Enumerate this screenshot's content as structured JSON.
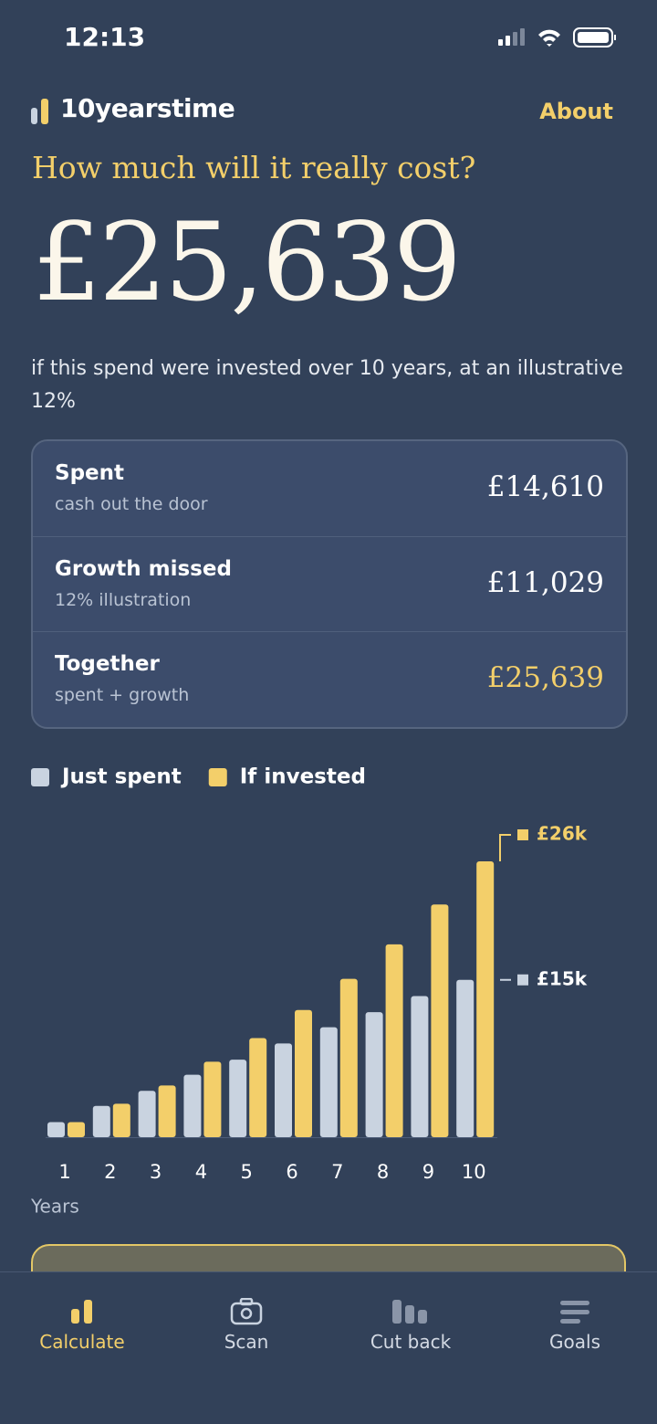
{
  "status_bar": {
    "time": "12:13"
  },
  "header": {
    "brand": "10yearstime",
    "about": "About"
  },
  "hero": {
    "question": "How much will it really cost?",
    "amount": "£25,639",
    "description": "if this spend were invested over 10 years, at an illustrative 12%"
  },
  "summary": {
    "rows": [
      {
        "label": "Spent",
        "sub": "cash out the door",
        "amount": "£14,610"
      },
      {
        "label": "Growth missed",
        "sub": "12% illustration",
        "amount": "£11,029"
      },
      {
        "label": "Together",
        "sub": "spent + growth",
        "amount": "£25,639"
      }
    ]
  },
  "chart_data": {
    "type": "bar",
    "categories": [
      "1",
      "2",
      "3",
      "4",
      "5",
      "6",
      "7",
      "8",
      "9",
      "10"
    ],
    "x_label": "Years",
    "series": [
      {
        "name": "Just spent",
        "color": "#c9d3e0",
        "values": [
          1.4,
          2.9,
          4.3,
          5.8,
          7.2,
          8.7,
          10.2,
          11.6,
          13.1,
          14.6
        ],
        "value_labels": [
          null,
          null,
          null,
          null,
          null,
          null,
          null,
          null,
          null,
          "£15k"
        ]
      },
      {
        "name": "If invested",
        "color": "#f3cf6a",
        "values": [
          1.4,
          3.1,
          4.8,
          7.0,
          9.2,
          11.8,
          14.7,
          17.9,
          21.6,
          25.6
        ],
        "value_labels": [
          null,
          null,
          null,
          null,
          null,
          null,
          null,
          null,
          null,
          "£26k"
        ]
      }
    ]
  },
  "nav": {
    "items": [
      "Calculate",
      "Scan",
      "Cut back",
      "Goals"
    ]
  }
}
